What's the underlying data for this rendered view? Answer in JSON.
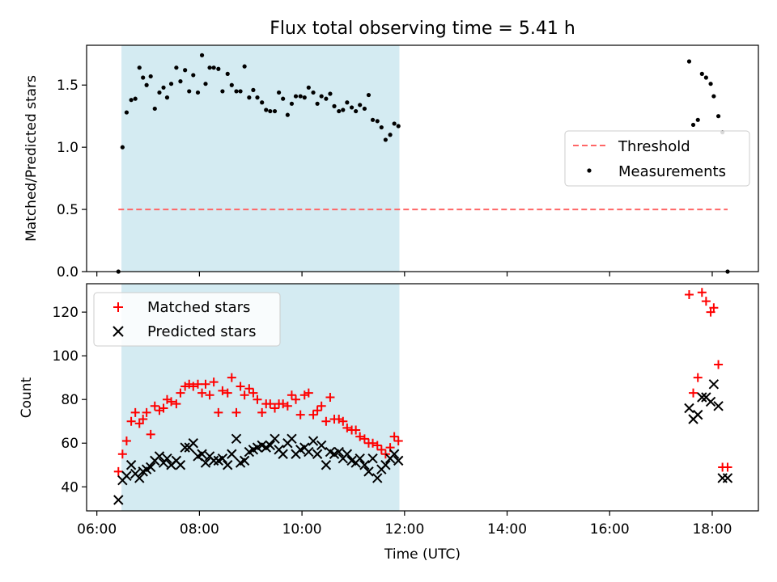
{
  "chart_data": [
    {
      "type": "scatter",
      "title": "Flux total observing time = 5.41 h",
      "ylabel": "Matched/Predicted stars",
      "xlabel": "",
      "ylim": [
        0,
        1.82
      ],
      "yticks": [
        "0.0",
        "0.5",
        "1.0",
        "1.5"
      ],
      "ytick_values": [
        0,
        0.5,
        1.0,
        1.5
      ],
      "highlight_span": {
        "start": 6.48,
        "end": 11.9,
        "color": "#add8e6"
      },
      "threshold": {
        "name": "Threshold",
        "value": 0.5,
        "x_range": [
          6.42,
          18.3
        ],
        "color": "#ff6666"
      },
      "legend": {
        "position": "center-right",
        "entries": [
          "Threshold",
          "Measurements"
        ]
      },
      "series": [
        {
          "name": "Measurements",
          "x": [
            6.42,
            6.5,
            6.58,
            6.67,
            6.75,
            6.83,
            6.9,
            6.97,
            7.05,
            7.13,
            7.22,
            7.3,
            7.37,
            7.45,
            7.55,
            7.63,
            7.72,
            7.8,
            7.88,
            7.97,
            8.05,
            8.12,
            8.2,
            8.28,
            8.37,
            8.45,
            8.55,
            8.63,
            8.72,
            8.8,
            8.88,
            8.97,
            9.05,
            9.13,
            9.22,
            9.3,
            9.38,
            9.47,
            9.55,
            9.63,
            9.72,
            9.8,
            9.88,
            9.97,
            10.05,
            10.13,
            10.22,
            10.3,
            10.38,
            10.47,
            10.55,
            10.63,
            10.72,
            10.8,
            10.88,
            10.97,
            11.05,
            11.13,
            11.22,
            11.3,
            11.38,
            11.47,
            11.55,
            11.63,
            11.72,
            11.8,
            11.88,
            17.55,
            17.63,
            17.72,
            17.8,
            17.88,
            17.97,
            18.03,
            18.12,
            18.2,
            18.3
          ],
          "y": [
            0.0,
            1.0,
            1.28,
            1.38,
            1.39,
            1.64,
            1.56,
            1.5,
            1.57,
            1.31,
            1.44,
            1.48,
            1.4,
            1.51,
            1.64,
            1.53,
            1.62,
            1.45,
            1.58,
            1.44,
            1.74,
            1.51,
            1.64,
            1.64,
            1.63,
            1.45,
            1.59,
            1.5,
            1.45,
            1.45,
            1.65,
            1.4,
            1.46,
            1.4,
            1.36,
            1.3,
            1.29,
            1.29,
            1.44,
            1.39,
            1.26,
            1.35,
            1.41,
            1.41,
            1.4,
            1.48,
            1.44,
            1.35,
            1.41,
            1.39,
            1.43,
            1.33,
            1.29,
            1.3,
            1.36,
            1.32,
            1.29,
            1.34,
            1.31,
            1.42,
            1.22,
            1.21,
            1.16,
            1.06,
            1.1,
            1.19,
            1.17,
            1.69,
            1.18,
            1.22,
            1.59,
            1.56,
            1.51,
            1.41,
            1.25,
            1.12,
            0.0
          ],
          "color": "#000000",
          "marker": "dot"
        }
      ]
    },
    {
      "type": "scatter",
      "title": "",
      "ylabel": "Count",
      "xlabel": "Time (UTC)",
      "ylim": [
        29,
        133
      ],
      "yticks": [
        "40",
        "60",
        "80",
        "100",
        "120"
      ],
      "ytick_values": [
        40,
        60,
        80,
        100,
        120
      ],
      "xlim": [
        5.8,
        18.9
      ],
      "xticks": [
        "06:00",
        "08:00",
        "10:00",
        "12:00",
        "14:00",
        "16:00",
        "18:00"
      ],
      "xtick_values": [
        6,
        8,
        10,
        12,
        14,
        16,
        18
      ],
      "highlight_span": {
        "start": 6.48,
        "end": 11.9,
        "color": "#add8e6"
      },
      "legend": {
        "position": "top-left",
        "entries": [
          "Matched stars",
          "Predicted stars"
        ]
      },
      "series": [
        {
          "name": "Matched stars",
          "marker": "plus",
          "color": "#ff0000",
          "x": [
            6.42,
            6.5,
            6.58,
            6.67,
            6.75,
            6.83,
            6.9,
            6.97,
            7.05,
            7.13,
            7.22,
            7.3,
            7.37,
            7.45,
            7.55,
            7.63,
            7.72,
            7.8,
            7.88,
            7.97,
            8.05,
            8.12,
            8.2,
            8.28,
            8.37,
            8.45,
            8.55,
            8.63,
            8.72,
            8.8,
            8.88,
            8.97,
            9.05,
            9.13,
            9.22,
            9.3,
            9.38,
            9.47,
            9.55,
            9.63,
            9.72,
            9.8,
            9.88,
            9.97,
            10.05,
            10.13,
            10.22,
            10.3,
            10.38,
            10.47,
            10.55,
            10.63,
            10.72,
            10.8,
            10.88,
            10.97,
            11.05,
            11.13,
            11.22,
            11.3,
            11.38,
            11.47,
            11.55,
            11.63,
            11.72,
            11.8,
            11.88,
            17.55,
            17.63,
            17.72,
            17.8,
            17.88,
            17.97,
            18.03,
            18.12,
            18.2,
            18.3
          ],
          "y": [
            47,
            55,
            61,
            70,
            74,
            69,
            71,
            74,
            64,
            77,
            75,
            76,
            80,
            79,
            78,
            83,
            86,
            87,
            86,
            87,
            83,
            87,
            82,
            88,
            74,
            84,
            83,
            90,
            74,
            86,
            82,
            85,
            83,
            80,
            74,
            78,
            78,
            76,
            78,
            78,
            77,
            82,
            80,
            73,
            82,
            83,
            73,
            75,
            77,
            70,
            81,
            71,
            71,
            70,
            67,
            66,
            66,
            63,
            62,
            60,
            60,
            59,
            57,
            55,
            58,
            63,
            61,
            128,
            83,
            90,
            129,
            125,
            120,
            122,
            96,
            49,
            49
          ]
        },
        {
          "name": "Predicted stars",
          "marker": "x",
          "color": "#000000",
          "x": [
            6.42,
            6.5,
            6.58,
            6.67,
            6.75,
            6.83,
            6.9,
            6.97,
            7.05,
            7.13,
            7.22,
            7.3,
            7.37,
            7.45,
            7.55,
            7.63,
            7.72,
            7.8,
            7.88,
            7.97,
            8.05,
            8.12,
            8.2,
            8.28,
            8.37,
            8.45,
            8.55,
            8.63,
            8.72,
            8.8,
            8.88,
            8.97,
            9.05,
            9.13,
            9.22,
            9.3,
            9.38,
            9.47,
            9.55,
            9.63,
            9.72,
            9.8,
            9.88,
            9.97,
            10.05,
            10.13,
            10.22,
            10.3,
            10.38,
            10.47,
            10.55,
            10.63,
            10.72,
            10.8,
            10.88,
            10.97,
            11.05,
            11.13,
            11.22,
            11.3,
            11.38,
            11.47,
            11.55,
            11.63,
            11.72,
            11.8,
            11.88,
            17.55,
            17.63,
            17.72,
            17.8,
            17.88,
            17.97,
            18.03,
            18.12,
            18.2,
            18.3
          ],
          "y": [
            34,
            43,
            45,
            50,
            46,
            44,
            47,
            48,
            49,
            52,
            54,
            51,
            53,
            50,
            52,
            50,
            58,
            58,
            60,
            54,
            55,
            51,
            54,
            52,
            52,
            53,
            50,
            55,
            62,
            51,
            52,
            56,
            57,
            58,
            59,
            58,
            59,
            62,
            57,
            55,
            60,
            62,
            55,
            57,
            58,
            56,
            61,
            55,
            59,
            50,
            56,
            55,
            56,
            53,
            55,
            52,
            51,
            53,
            50,
            47,
            53,
            44,
            48,
            50,
            53,
            55,
            52,
            76,
            71,
            73,
            81,
            81,
            79,
            87,
            77,
            44,
            44
          ]
        }
      ]
    }
  ]
}
